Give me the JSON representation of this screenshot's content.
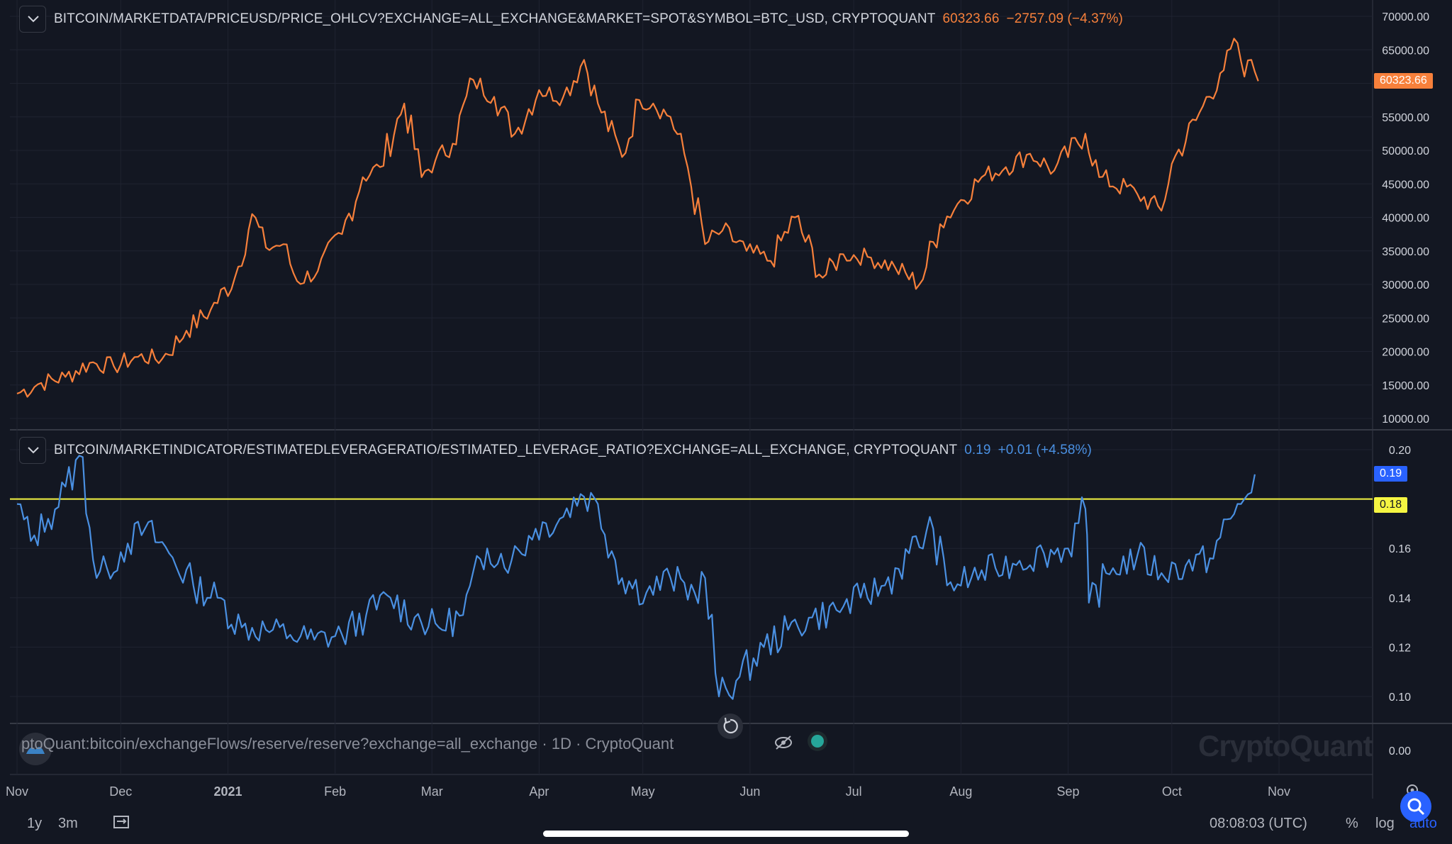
{
  "colors": {
    "background": "#131722",
    "grid": "#1f2330",
    "price_line": "#f7803b",
    "leverage_line": "#4a90e2",
    "threshold_line": "#f5f542",
    "axis_text": "#d1d4dc"
  },
  "pane1": {
    "symbol": "BITCOIN/MARKETDATA/PRICEUSD/PRICE_OHLCV?EXCHANGE=ALL_EXCHANGE&MARKET=SPOT&SYMBOL=BTC_USD, CRYPTOQUANT",
    "last": "60323.66",
    "change": "−2757.09 (−4.37%)",
    "price_tag": "60323.66"
  },
  "pane2": {
    "symbol": "BITCOIN/MARKETINDICATOR/ESTIMATEDLEVERAGERATIO/ESTIMATED_LEVERAGE_RATIO?EXCHANGE=ALL_EXCHANGE, CRYPTOQUANT",
    "last": "0.19",
    "change": "+0.01 (+4.58%)",
    "price_tag": "0.19",
    "threshold_tag": "0.18"
  },
  "pane3": {
    "label": "ptoQuant:bitcoin/exchangeFlows/reserve/reserve?exchange=all_exchange · 1D · CryptoQuant",
    "zero_tick": "0.00"
  },
  "watermark": "CryptoQuant",
  "bottom_bar": {
    "range_1y": "1y",
    "range_3m": "3m",
    "clock": "08:08:03 (UTC)",
    "percent": "%",
    "log": "log",
    "auto": "auto"
  },
  "icons": {
    "collapse": "chevron-down-icon",
    "reset": "reset-icon",
    "hide": "eye-off-icon",
    "logo": "cryptoquant-logo-icon",
    "date_range": "calendar-range-icon",
    "settings": "gear-icon",
    "search": "search-icon"
  },
  "chart_data": [
    {
      "type": "line",
      "series": [
        {
          "x": [
            "2020-11-01",
            "2020-11-08",
            "2020-11-15",
            "2020-11-22",
            "2020-11-29",
            "2020-12-06",
            "2020-12-13",
            "2020-12-20",
            "2020-12-27",
            "2021-01-03",
            "2021-01-08",
            "2021-01-12",
            "2021-01-17",
            "2021-01-21",
            "2021-01-27",
            "2021-02-03",
            "2021-02-09",
            "2021-02-14",
            "2021-02-21",
            "2021-02-26",
            "2021-03-02",
            "2021-03-07",
            "2021-03-13",
            "2021-03-19",
            "2021-03-25",
            "2021-04-01",
            "2021-04-08",
            "2021-04-14",
            "2021-04-18",
            "2021-04-25",
            "2021-04-30",
            "2021-05-04",
            "2021-05-09",
            "2021-05-13",
            "2021-05-19",
            "2021-05-24",
            "2021-05-31",
            "2021-06-07",
            "2021-06-14",
            "2021-06-22",
            "2021-06-28",
            "2021-07-06",
            "2021-07-13",
            "2021-07-20",
            "2021-07-26",
            "2021-07-31",
            "2021-08-07",
            "2021-08-14",
            "2021-08-21",
            "2021-08-28",
            "2021-09-06",
            "2021-09-10",
            "2021-09-21",
            "2021-09-28",
            "2021-10-01",
            "2021-10-08",
            "2021-10-15",
            "2021-10-20",
            "2021-10-22",
            "2021-10-24",
            "2021-10-26"
          ],
          "values": [
            13700,
            15300,
            16200,
            18300,
            17800,
            19200,
            18900,
            23100,
            26200,
            31000,
            40500,
            35500,
            36000,
            30500,
            32000,
            37500,
            46000,
            47500,
            57000,
            46000,
            48500,
            51000,
            60500,
            58000,
            52500,
            59000,
            58000,
            63500,
            57000,
            49000,
            57500,
            57000,
            55000,
            49500,
            36000,
            38000,
            35000,
            33500,
            40000,
            31000,
            34500,
            34000,
            32500,
            30000,
            39000,
            42000,
            46000,
            47500,
            49500,
            47000,
            52500,
            46000,
            43500,
            41000,
            48000,
            54500,
            61500,
            66000,
            61000,
            63500,
            60323.66
          ],
          "ylim": [
            10000,
            70000
          ]
        }
      ],
      "yticks": [
        "70000.00",
        "65000.00",
        "60000.00",
        "55000.00",
        "50000.00",
        "45000.00",
        "40000.00",
        "35000.00",
        "30000.00",
        "25000.00",
        "20000.00",
        "15000.00",
        "10000.00"
      ],
      "xticks": [
        "Nov",
        "Dec",
        "2021",
        "Feb",
        "Mar",
        "Apr",
        "May",
        "Jun",
        "Jul",
        "Aug",
        "Sep",
        "Oct",
        "Nov"
      ]
    },
    {
      "type": "line",
      "series": [
        {
          "x": [
            "2020-11-01",
            "2020-11-05",
            "2020-11-10",
            "2020-11-15",
            "2020-11-20",
            "2020-11-24",
            "2020-11-27",
            "2020-12-03",
            "2020-12-08",
            "2020-12-15",
            "2020-12-22",
            "2020-12-29",
            "2021-01-05",
            "2021-01-12",
            "2021-01-19",
            "2021-01-26",
            "2021-02-03",
            "2021-02-10",
            "2021-02-17",
            "2021-02-24",
            "2021-03-03",
            "2021-03-10",
            "2021-03-17",
            "2021-03-24",
            "2021-03-31",
            "2021-04-07",
            "2021-04-13",
            "2021-04-18",
            "2021-04-25",
            "2021-05-02",
            "2021-05-09",
            "2021-05-16",
            "2021-05-19",
            "2021-05-23",
            "2021-05-29",
            "2021-06-05",
            "2021-06-12",
            "2021-06-19",
            "2021-06-26",
            "2021-07-03",
            "2021-07-10",
            "2021-07-17",
            "2021-07-24",
            "2021-07-28",
            "2021-08-04",
            "2021-08-11",
            "2021-08-18",
            "2021-08-25",
            "2021-09-01",
            "2021-09-06",
            "2021-09-07",
            "2021-09-14",
            "2021-09-21",
            "2021-09-28",
            "2021-10-05",
            "2021-10-12",
            "2021-10-18",
            "2021-10-22",
            "2021-10-25"
          ],
          "values": [
            0.178,
            0.163,
            0.172,
            0.185,
            0.197,
            0.148,
            0.152,
            0.162,
            0.168,
            0.158,
            0.145,
            0.14,
            0.128,
            0.127,
            0.125,
            0.123,
            0.125,
            0.133,
            0.14,
            0.132,
            0.128,
            0.133,
            0.16,
            0.155,
            0.168,
            0.172,
            0.182,
            0.178,
            0.148,
            0.142,
            0.148,
            0.142,
            0.148,
            0.1,
            0.108,
            0.12,
            0.127,
            0.132,
            0.135,
            0.14,
            0.145,
            0.158,
            0.168,
            0.145,
            0.148,
            0.152,
            0.155,
            0.158,
            0.16,
            0.176,
            0.138,
            0.152,
            0.157,
            0.15,
            0.153,
            0.156,
            0.172,
            0.18,
            0.19
          ],
          "ylim": [
            0.09,
            0.205
          ]
        }
      ],
      "threshold": 0.18,
      "yticks": [
        "0.20",
        "0.16",
        "0.14",
        "0.12",
        "0.10"
      ]
    }
  ]
}
